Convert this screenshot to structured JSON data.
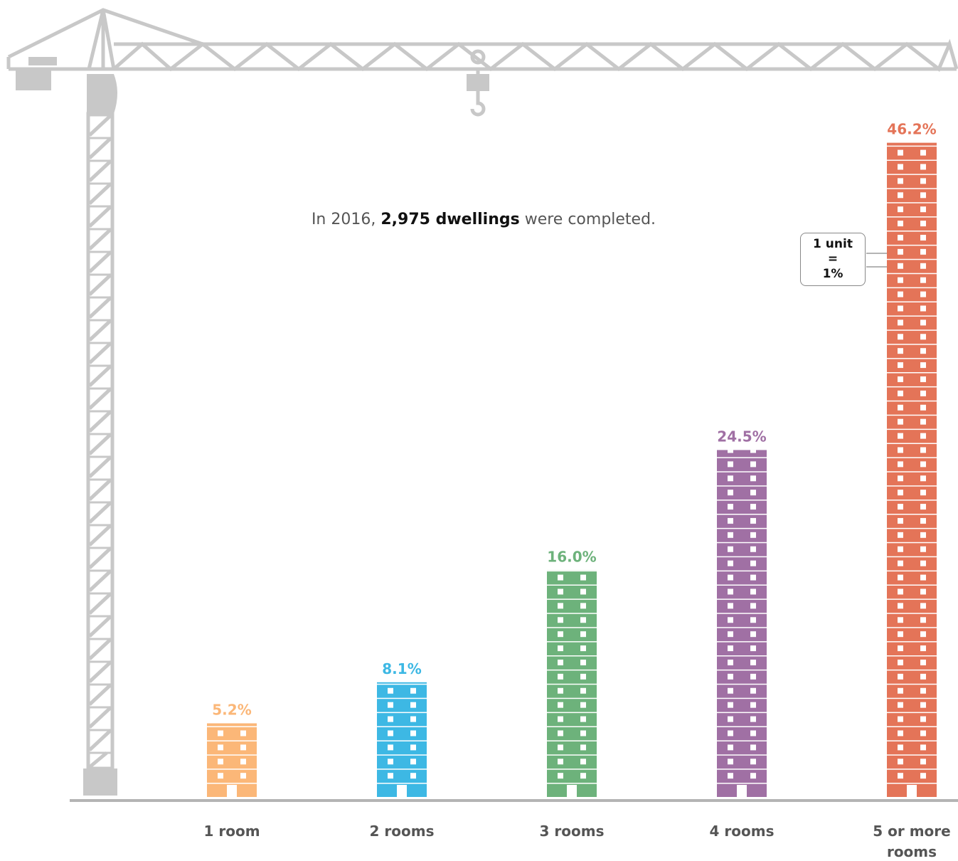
{
  "chart_data": {
    "type": "bar",
    "annotation": [
      "In 2016,",
      "2,975 dwellings",
      "were completed."
    ],
    "unit_note": [
      "1 unit",
      "=",
      "1%"
    ],
    "categories": [
      "1 room",
      "2 rooms",
      "3 rooms",
      "4 rooms",
      "5 or more rooms"
    ],
    "values": [
      5.2,
      8.1,
      16.0,
      24.5,
      46.2
    ],
    "value_labels": [
      "5.2%",
      "8.1%",
      "16.0%",
      "24.5%",
      "46.2%"
    ],
    "colors": [
      "#fbb778",
      "#3db8e4",
      "#6db27b",
      "#a070a4",
      "#e47458"
    ]
  }
}
